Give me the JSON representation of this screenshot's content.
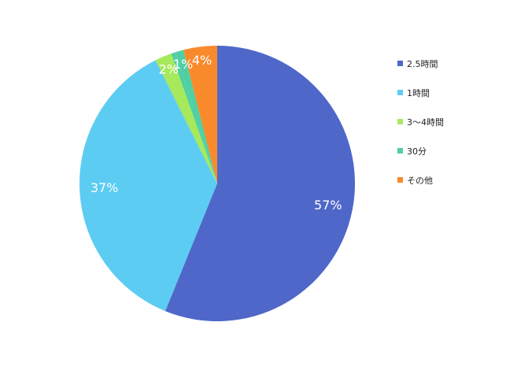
{
  "chart_data": {
    "type": "pie",
    "slices": [
      {
        "label": "2.5時間",
        "value": 57,
        "display": "57%",
        "color": "#4F67C9"
      },
      {
        "label": "1時間",
        "value": 37,
        "display": "37%",
        "color": "#5DCCF2"
      },
      {
        "label": "3〜4時間",
        "value": 2,
        "display": "2%",
        "color": "#A6E95A"
      },
      {
        "label": "30分",
        "value": 0.5,
        "display": "",
        "color": "#4FCFA3"
      },
      {
        "label": "",
        "value": 1,
        "display": "1%",
        "color": "#4FCFA3"
      },
      {
        "label": "その他",
        "value": 4,
        "display": "4%",
        "color": "#F98A2C"
      }
    ],
    "legend_position": "right"
  }
}
